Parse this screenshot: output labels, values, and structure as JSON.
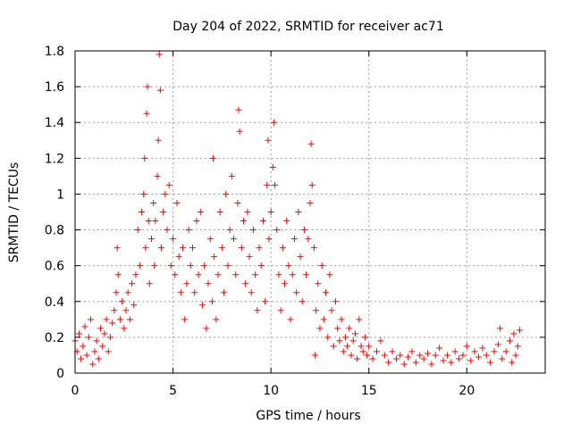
{
  "chart_data": {
    "type": "scatter",
    "title": "Day 204 of 2022, SRMTID for receiver ac71",
    "xlabel": "GPS time / hours",
    "ylabel": "SRMTID / TECUs",
    "xlim": [
      0,
      24
    ],
    "ylim": [
      0,
      1.8
    ],
    "xticks": [
      0,
      5,
      10,
      15,
      20
    ],
    "xtick_labels": [
      "0",
      "5",
      "10",
      "15",
      "20"
    ],
    "yticks": [
      0,
      0.2,
      0.4,
      0.6,
      0.8,
      1.0,
      1.2,
      1.4,
      1.6,
      1.8
    ],
    "ytick_labels": [
      "0",
      "0.2",
      "0.4",
      "0.6",
      "0.8",
      "1",
      "1.2",
      "1.4",
      "1.6",
      "1.8"
    ],
    "grid": true,
    "marker": "+",
    "marker_color": "#ff0000",
    "series": [
      {
        "name": "SRMTID",
        "points": [
          [
            0.0,
            0.18
          ],
          [
            0.1,
            0.12
          ],
          [
            0.2,
            0.22
          ],
          [
            0.3,
            0.08
          ],
          [
            0.4,
            0.15
          ],
          [
            0.5,
            0.26
          ],
          [
            0.6,
            0.1
          ],
          [
            0.7,
            0.2
          ],
          [
            0.8,
            0.3
          ],
          [
            0.9,
            0.05
          ],
          [
            1.0,
            0.12
          ],
          [
            1.1,
            0.18
          ],
          [
            1.2,
            0.08
          ],
          [
            1.3,
            0.25
          ],
          [
            1.4,
            0.15
          ],
          [
            1.5,
            0.22
          ],
          [
            1.6,
            0.3
          ],
          [
            1.7,
            0.12
          ],
          [
            1.8,
            0.2
          ],
          [
            1.9,
            0.28
          ],
          [
            2.0,
            0.35
          ],
          [
            2.1,
            0.45
          ],
          [
            2.15,
            0.7
          ],
          [
            2.2,
            0.55
          ],
          [
            2.3,
            0.3
          ],
          [
            2.4,
            0.4
          ],
          [
            2.5,
            0.25
          ],
          [
            2.6,
            0.35
          ],
          [
            2.7,
            0.45
          ],
          [
            2.8,
            0.3
          ],
          [
            2.9,
            0.5
          ],
          [
            3.0,
            0.38
          ],
          [
            3.1,
            0.55
          ],
          [
            3.2,
            0.8
          ],
          [
            3.3,
            0.6
          ],
          [
            3.4,
            0.9
          ],
          [
            3.5,
            1.0
          ],
          [
            3.55,
            1.2
          ],
          [
            3.6,
            0.7
          ],
          [
            3.65,
            1.45
          ],
          [
            3.7,
            1.6
          ],
          [
            3.75,
            0.85
          ],
          [
            3.8,
            0.5
          ],
          [
            3.9,
            0.75
          ],
          [
            4.0,
            0.95
          ],
          [
            4.05,
            0.6
          ],
          [
            4.1,
            0.85
          ],
          [
            4.2,
            1.1
          ],
          [
            4.25,
            1.3
          ],
          [
            4.3,
            1.78
          ],
          [
            4.35,
            1.58
          ],
          [
            4.4,
            0.7
          ],
          [
            4.5,
            0.9
          ],
          [
            4.6,
            1.0
          ],
          [
            4.7,
            0.8
          ],
          [
            4.8,
            1.05
          ],
          [
            4.9,
            0.6
          ],
          [
            5.0,
            0.75
          ],
          [
            5.1,
            0.55
          ],
          [
            5.2,
            0.95
          ],
          [
            5.3,
            0.65
          ],
          [
            5.4,
            0.45
          ],
          [
            5.5,
            0.7
          ],
          [
            5.6,
            0.3
          ],
          [
            5.7,
            0.5
          ],
          [
            5.8,
            0.8
          ],
          [
            5.9,
            0.6
          ],
          [
            6.0,
            0.7
          ],
          [
            6.1,
            0.45
          ],
          [
            6.2,
            0.85
          ],
          [
            6.3,
            0.55
          ],
          [
            6.4,
            0.9
          ],
          [
            6.5,
            0.38
          ],
          [
            6.6,
            0.6
          ],
          [
            6.7,
            0.25
          ],
          [
            6.8,
            0.5
          ],
          [
            6.9,
            0.75
          ],
          [
            7.0,
            0.4
          ],
          [
            7.05,
            1.2
          ],
          [
            7.1,
            0.65
          ],
          [
            7.2,
            0.3
          ],
          [
            7.3,
            0.55
          ],
          [
            7.4,
            0.9
          ],
          [
            7.5,
            0.7
          ],
          [
            7.6,
            0.45
          ],
          [
            7.7,
            1.0
          ],
          [
            7.8,
            0.6
          ],
          [
            7.9,
            0.8
          ],
          [
            8.0,
            1.1
          ],
          [
            8.1,
            0.75
          ],
          [
            8.2,
            0.55
          ],
          [
            8.3,
            0.95
          ],
          [
            8.35,
            1.47
          ],
          [
            8.4,
            1.35
          ],
          [
            8.5,
            0.7
          ],
          [
            8.6,
            0.85
          ],
          [
            8.7,
            0.5
          ],
          [
            8.8,
            0.9
          ],
          [
            8.9,
            0.65
          ],
          [
            9.0,
            0.45
          ],
          [
            9.1,
            0.8
          ],
          [
            9.2,
            0.55
          ],
          [
            9.3,
            0.35
          ],
          [
            9.4,
            0.7
          ],
          [
            9.5,
            0.6
          ],
          [
            9.6,
            0.85
          ],
          [
            9.7,
            0.4
          ],
          [
            9.8,
            1.05
          ],
          [
            9.85,
            1.3
          ],
          [
            9.9,
            0.75
          ],
          [
            10.0,
            0.9
          ],
          [
            10.1,
            1.15
          ],
          [
            10.15,
            1.4
          ],
          [
            10.2,
            1.05
          ],
          [
            10.3,
            0.8
          ],
          [
            10.4,
            0.55
          ],
          [
            10.5,
            0.35
          ],
          [
            10.6,
            0.7
          ],
          [
            10.7,
            0.5
          ],
          [
            10.8,
            0.85
          ],
          [
            10.9,
            0.6
          ],
          [
            11.0,
            0.3
          ],
          [
            11.1,
            0.55
          ],
          [
            11.2,
            0.75
          ],
          [
            11.3,
            0.45
          ],
          [
            11.4,
            0.9
          ],
          [
            11.5,
            0.65
          ],
          [
            11.6,
            0.4
          ],
          [
            11.7,
            0.8
          ],
          [
            11.8,
            0.55
          ],
          [
            11.9,
            0.75
          ],
          [
            12.0,
            0.95
          ],
          [
            12.05,
            1.28
          ],
          [
            12.1,
            1.05
          ],
          [
            12.2,
            0.7
          ],
          [
            12.25,
            0.1
          ],
          [
            12.3,
            0.35
          ],
          [
            12.4,
            0.5
          ],
          [
            12.5,
            0.25
          ],
          [
            12.6,
            0.6
          ],
          [
            12.7,
            0.3
          ],
          [
            12.8,
            0.45
          ],
          [
            12.9,
            0.2
          ],
          [
            13.0,
            0.55
          ],
          [
            13.1,
            0.35
          ],
          [
            13.2,
            0.15
          ],
          [
            13.3,
            0.4
          ],
          [
            13.4,
            0.25
          ],
          [
            13.5,
            0.18
          ],
          [
            13.6,
            0.3
          ],
          [
            13.7,
            0.12
          ],
          [
            13.8,
            0.2
          ],
          [
            13.9,
            0.15
          ],
          [
            14.0,
            0.25
          ],
          [
            14.1,
            0.1
          ],
          [
            14.2,
            0.18
          ],
          [
            14.3,
            0.22
          ],
          [
            14.4,
            0.08
          ],
          [
            14.5,
            0.3
          ],
          [
            14.6,
            0.15
          ],
          [
            14.7,
            0.12
          ],
          [
            14.8,
            0.2
          ],
          [
            14.9,
            0.1
          ],
          [
            15.0,
            0.15
          ],
          [
            15.2,
            0.08
          ],
          [
            15.4,
            0.12
          ],
          [
            15.6,
            0.18
          ],
          [
            15.8,
            0.1
          ],
          [
            16.0,
            0.06
          ],
          [
            16.2,
            0.12
          ],
          [
            16.4,
            0.08
          ],
          [
            16.6,
            0.1
          ],
          [
            16.8,
            0.05
          ],
          [
            17.0,
            0.09
          ],
          [
            17.2,
            0.12
          ],
          [
            17.4,
            0.06
          ],
          [
            17.6,
            0.1
          ],
          [
            17.8,
            0.08
          ],
          [
            18.0,
            0.11
          ],
          [
            18.2,
            0.05
          ],
          [
            18.4,
            0.1
          ],
          [
            18.6,
            0.14
          ],
          [
            18.8,
            0.07
          ],
          [
            19.0,
            0.1
          ],
          [
            19.2,
            0.06
          ],
          [
            19.4,
            0.12
          ],
          [
            19.6,
            0.08
          ],
          [
            19.8,
            0.1
          ],
          [
            20.0,
            0.15
          ],
          [
            20.2,
            0.07
          ],
          [
            20.4,
            0.12
          ],
          [
            20.6,
            0.09
          ],
          [
            20.8,
            0.14
          ],
          [
            21.0,
            0.1
          ],
          [
            21.2,
            0.06
          ],
          [
            21.4,
            0.12
          ],
          [
            21.6,
            0.16
          ],
          [
            21.7,
            0.25
          ],
          [
            21.8,
            0.08
          ],
          [
            22.0,
            0.12
          ],
          [
            22.2,
            0.18
          ],
          [
            22.3,
            0.06
          ],
          [
            22.4,
            0.22
          ],
          [
            22.5,
            0.1
          ],
          [
            22.6,
            0.15
          ],
          [
            22.7,
            0.24
          ]
        ]
      }
    ]
  }
}
